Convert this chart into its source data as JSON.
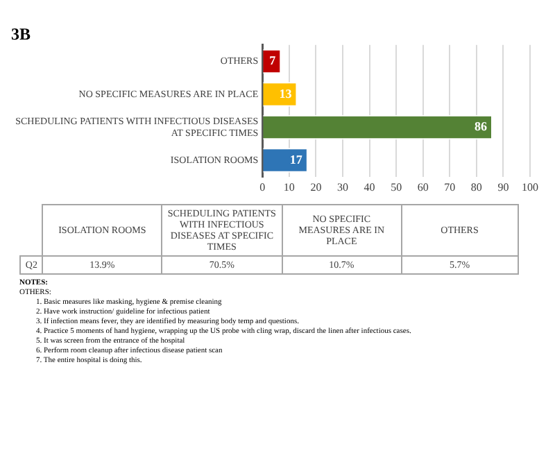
{
  "chart_data": {
    "type": "bar",
    "orientation": "horizontal",
    "title": "3B",
    "categories": [
      "OTHERS",
      "NO SPECIFIC MEASURES ARE IN PLACE",
      "SCHEDULING PATIENTS WITH INFECTIOUS DISEASES AT SPECIFIC TIMES",
      "ISOLATION ROOMS"
    ],
    "values": [
      7,
      13,
      86,
      17
    ],
    "colors": [
      "#c00000",
      "#ffc000",
      "#548235",
      "#2e75b6"
    ],
    "xlim": [
      0,
      100
    ],
    "xticks": [
      0,
      10,
      20,
      30,
      40,
      50,
      60,
      70,
      80,
      90,
      100
    ],
    "grid": "x",
    "data_labels": true,
    "legend": false,
    "annotations": [
      "Q2",
      "13.9%",
      "70.5%",
      "10.7%",
      "5.7%",
      "NOTES:",
      "OTHERS:",
      "1. Basic measures like masking, hygiene & premise cleaning",
      "2. Have work instruction/ guideline for infectious patient",
      "3. If infection means fever, they are identified by measuring body temp and questions.",
      "4. Practice 5 moments of hand hygiene, wrapping up the US probe with cling wrap, discard the linen after infectious cases.",
      "5. It was screen from the entrance of the hospital",
      "6. Perform room cleanup after infectious disease patient scan",
      "7. The entire hospital is doing this."
    ]
  }
}
